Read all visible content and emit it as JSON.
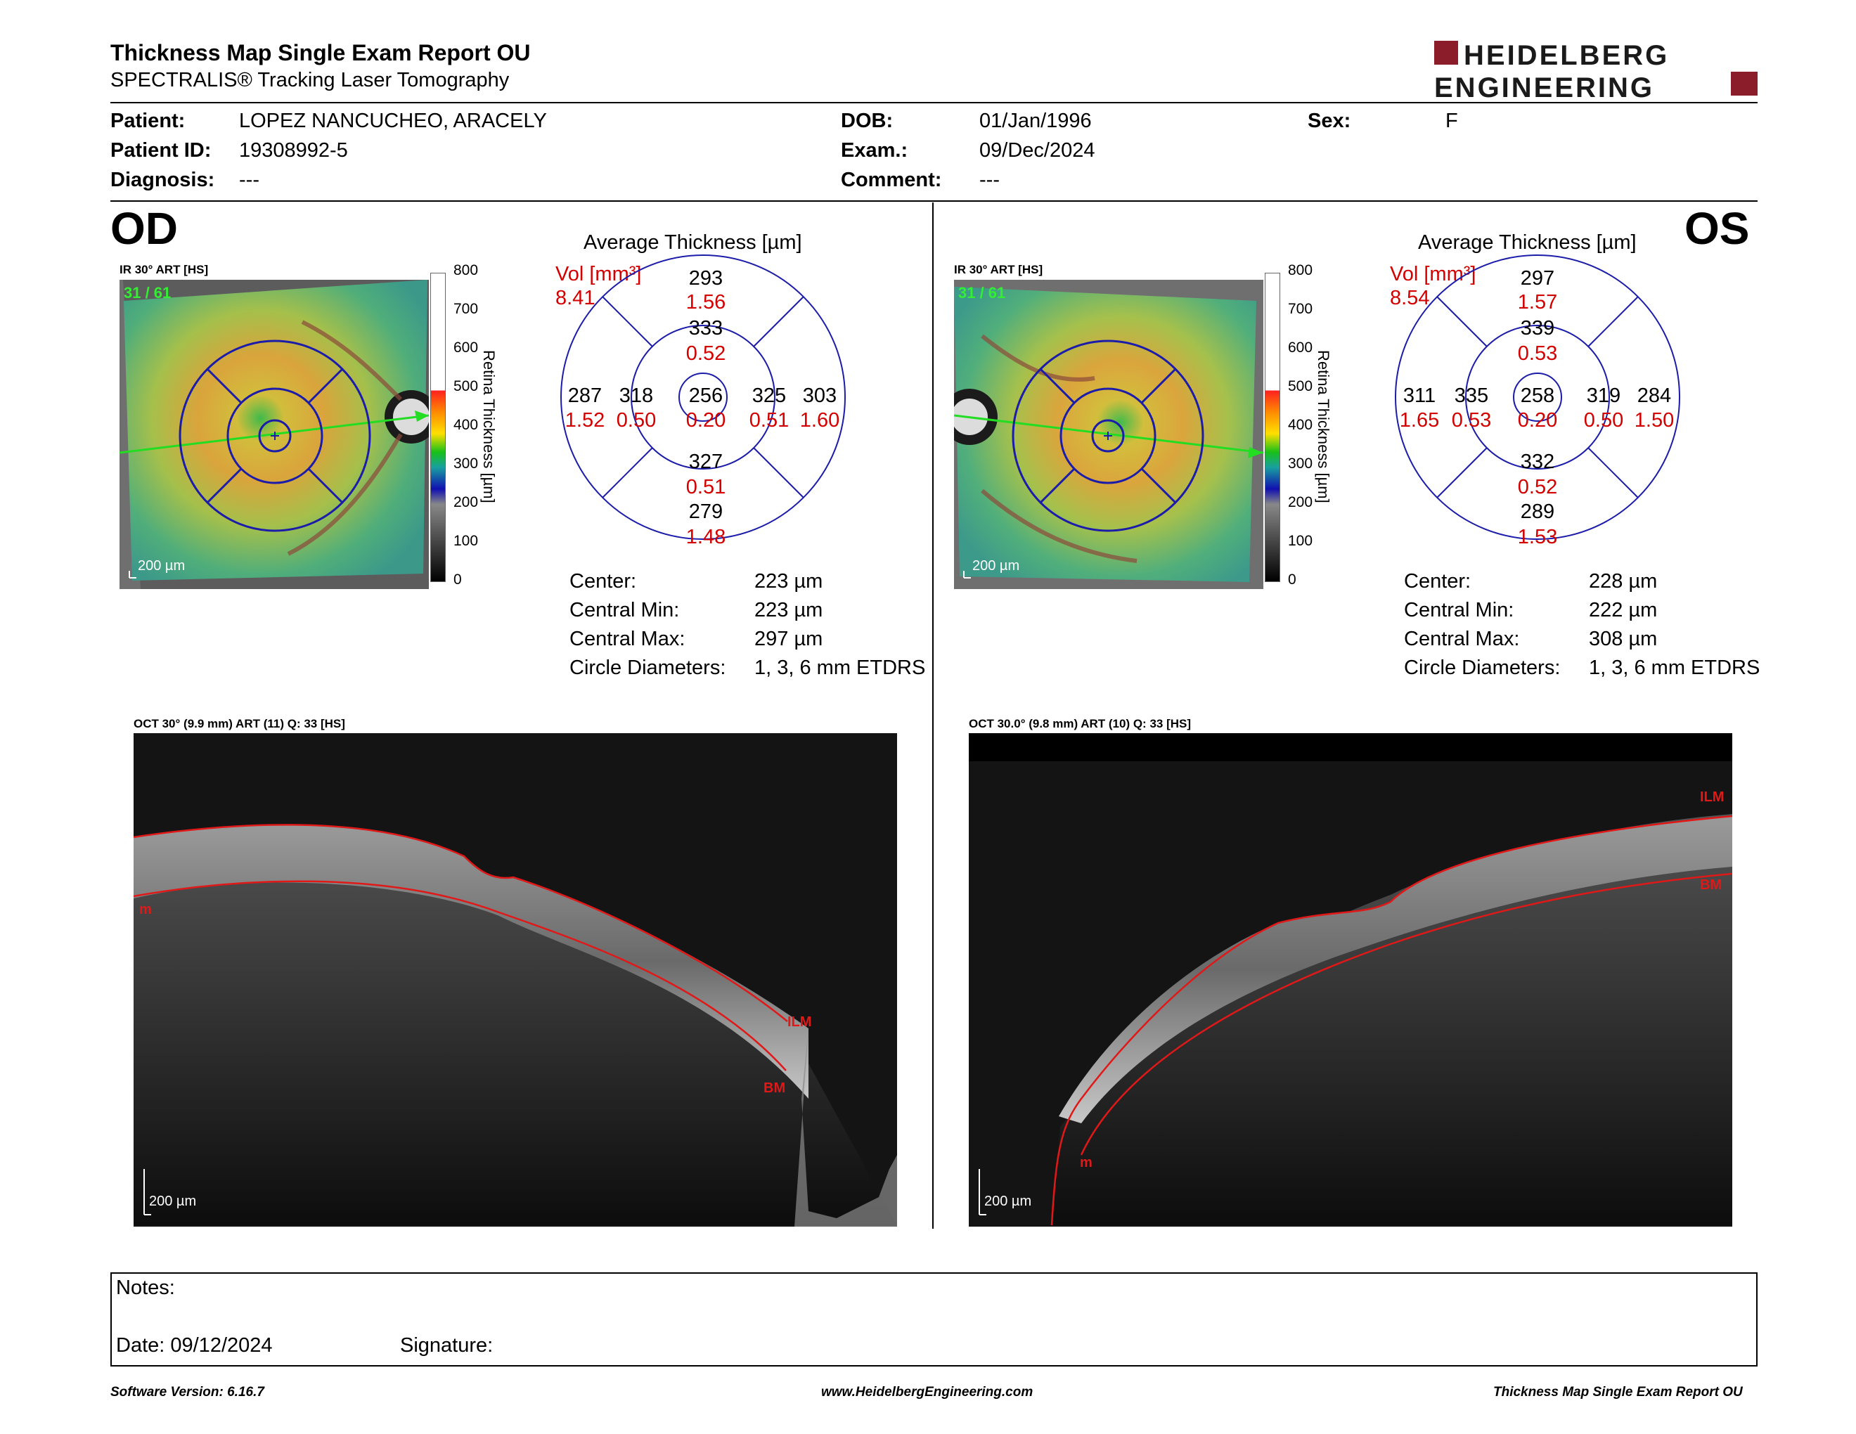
{
  "header": {
    "title": "Thickness Map Single Exam Report OU",
    "subtitle": "SPECTRALIS® Tracking Laser Tomography",
    "logo_line1": "HEIDELBERG",
    "logo_line2": "ENGINEERING",
    "brand_color": "#8b1c2a"
  },
  "patient": {
    "patient_label": "Patient:",
    "patient_value": "LOPEZ NANCUCHEO, ARACELY",
    "id_label": "Patient ID:",
    "id_value": "19308992-5",
    "diag_label": "Diagnosis:",
    "diag_value": "---",
    "dob_label": "DOB:",
    "dob_value": "01/Jan/1996",
    "exam_label": "Exam.:",
    "exam_value": "09/Dec/2024",
    "comment_label": "Comment:",
    "comment_value": "---",
    "sex_label": "Sex:",
    "sex_value": "F"
  },
  "od": {
    "eye": "OD",
    "ir_label": "IR 30° ART [HS]",
    "frame_count": "31 / 61",
    "scale_bar": "200 µm",
    "scale_ticks": [
      "800",
      "700",
      "600",
      "500",
      "400",
      "300",
      "200",
      "100",
      "0"
    ],
    "scale_title": "Retina   Thickness [µm]",
    "avg_title": "Average Thickness [µm]",
    "vol_label": "Vol [mm³]",
    "vol_value": "8.41",
    "sectors": {
      "outer_top": "293",
      "outer_top_vol": "1.56",
      "inner_top": "333",
      "inner_top_vol": "0.52",
      "center": "256",
      "center_vol": "0.20",
      "outer_left": "287",
      "outer_left_vol": "1.52",
      "inner_left": "318",
      "inner_left_vol": "0.50",
      "inner_right": "325",
      "inner_right_vol": "0.51",
      "outer_right": "303",
      "outer_right_vol": "1.60",
      "inner_bottom": "327",
      "inner_bottom_vol": "0.51",
      "outer_bottom": "279",
      "outer_bottom_vol": "1.48"
    },
    "stats": {
      "center_label": "Center:",
      "center_value": "223 µm",
      "min_label": "Central Min:",
      "min_value": "223 µm",
      "max_label": "Central Max:",
      "max_value": "297 µm",
      "circ_label": "Circle Diameters:",
      "circ_value": "1, 3, 6 mm ETDRS"
    },
    "oct_label": "OCT 30° (9.9 mm) ART (11) Q: 33 [HS]",
    "oct_scale": "200 µm",
    "ilm": "ILM",
    "bm": "BM",
    "m": "m"
  },
  "os": {
    "eye": "OS",
    "ir_label": "IR 30° ART [HS]",
    "frame_count": "31 / 61",
    "scale_bar": "200 µm",
    "scale_ticks": [
      "800",
      "700",
      "600",
      "500",
      "400",
      "300",
      "200",
      "100",
      "0"
    ],
    "scale_title": "Retina   Thickness [µm]",
    "avg_title": "Average Thickness [µm]",
    "vol_label": "Vol [mm³]",
    "vol_value": "8.54",
    "sectors": {
      "outer_top": "297",
      "outer_top_vol": "1.57",
      "inner_top": "339",
      "inner_top_vol": "0.53",
      "center": "258",
      "center_vol": "0.20",
      "outer_left": "311",
      "outer_left_vol": "1.65",
      "inner_left": "335",
      "inner_left_vol": "0.53",
      "inner_right": "319",
      "inner_right_vol": "0.50",
      "outer_right": "284",
      "outer_right_vol": "1.50",
      "inner_bottom": "332",
      "inner_bottom_vol": "0.52",
      "outer_bottom": "289",
      "outer_bottom_vol": "1.53"
    },
    "stats": {
      "center_label": "Center:",
      "center_value": "228 µm",
      "min_label": "Central Min:",
      "min_value": "222 µm",
      "max_label": "Central Max:",
      "max_value": "308 µm",
      "circ_label": "Circle Diameters:",
      "circ_value": "1, 3, 6 mm ETDRS"
    },
    "oct_label": "OCT 30.0° (9.8 mm) ART (10) Q: 33 [HS]",
    "oct_scale": "200 µm",
    "ilm": "ILM",
    "bm": "BM",
    "m": "m"
  },
  "notes": {
    "notes_label": "Notes:",
    "date_label": "Date: 09/12/2024",
    "signature_label": "Signature:"
  },
  "footer": {
    "software": "Software Version: 6.16.7",
    "website": "www.HeidelbergEngineering.com",
    "report_name": "Thickness Map Single Exam Report OU"
  }
}
